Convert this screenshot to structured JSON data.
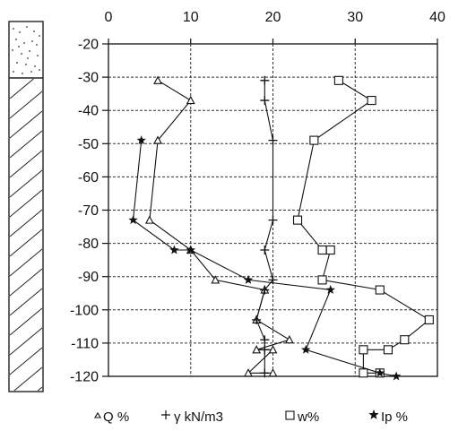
{
  "chart_data": {
    "type": "scatter",
    "title": "",
    "xlabel": "",
    "ylabel": "",
    "xlim": [
      0,
      40
    ],
    "ylim": [
      -120,
      -20
    ],
    "x_ticks": [
      "0",
      "10",
      "20",
      "30",
      "40"
    ],
    "y_ticks": [
      "-20",
      "-30",
      "-40",
      "-50",
      "-60",
      "-70",
      "-80",
      "-90",
      "-100",
      "-110",
      "-120"
    ],
    "grid": "dashed",
    "legend_position": "bottom",
    "series": [
      {
        "name": "Q %",
        "marker": "triangle",
        "connected": true,
        "points": [
          [
            6,
            -31
          ],
          [
            10,
            -37
          ],
          [
            6,
            -49
          ],
          [
            5,
            -73
          ],
          [
            10,
            -82
          ],
          [
            13,
            -91
          ],
          [
            19,
            -94
          ],
          [
            18,
            -103
          ],
          [
            22,
            -109
          ],
          [
            18,
            -112
          ],
          [
            20,
            -112
          ],
          [
            17,
            -119
          ],
          [
            20,
            -119
          ]
        ]
      },
      {
        "name": "γ kN/m3",
        "marker": "plus",
        "connected": true,
        "points": [
          [
            19,
            -31
          ],
          [
            19,
            -37
          ],
          [
            20,
            -49
          ],
          [
            20,
            -73
          ],
          [
            19,
            -82
          ],
          [
            20,
            -91
          ],
          [
            19,
            -94
          ],
          [
            18,
            -103
          ],
          [
            19,
            -109
          ],
          [
            19,
            -112
          ],
          [
            19,
            -119
          ]
        ]
      },
      {
        "name": "w%",
        "marker": "square",
        "connected": true,
        "points": [
          [
            28,
            -31
          ],
          [
            32,
            -37
          ],
          [
            25,
            -49
          ],
          [
            23,
            -73
          ],
          [
            26,
            -82
          ],
          [
            27,
            -82
          ],
          [
            26,
            -91
          ],
          [
            33,
            -94
          ],
          [
            39,
            -103
          ],
          [
            36,
            -109
          ],
          [
            34,
            -112
          ],
          [
            31,
            -112
          ],
          [
            31,
            -119
          ],
          [
            33,
            -119
          ]
        ]
      },
      {
        "name": "Ip %",
        "marker": "star",
        "connected": true,
        "points": [
          [
            4,
            -49
          ],
          [
            3,
            -73
          ],
          [
            8,
            -82
          ],
          [
            10,
            -82
          ],
          [
            17,
            -91
          ],
          [
            27,
            -94
          ],
          [
            24,
            -112
          ],
          [
            33,
            -119
          ],
          [
            35,
            -120
          ]
        ]
      }
    ]
  },
  "legend": {
    "q": "Q %",
    "gamma": "γ kN/m3",
    "w": "w%",
    "ip": "Ip %"
  },
  "soil_column": {
    "layers": [
      "sand",
      "clay"
    ]
  }
}
